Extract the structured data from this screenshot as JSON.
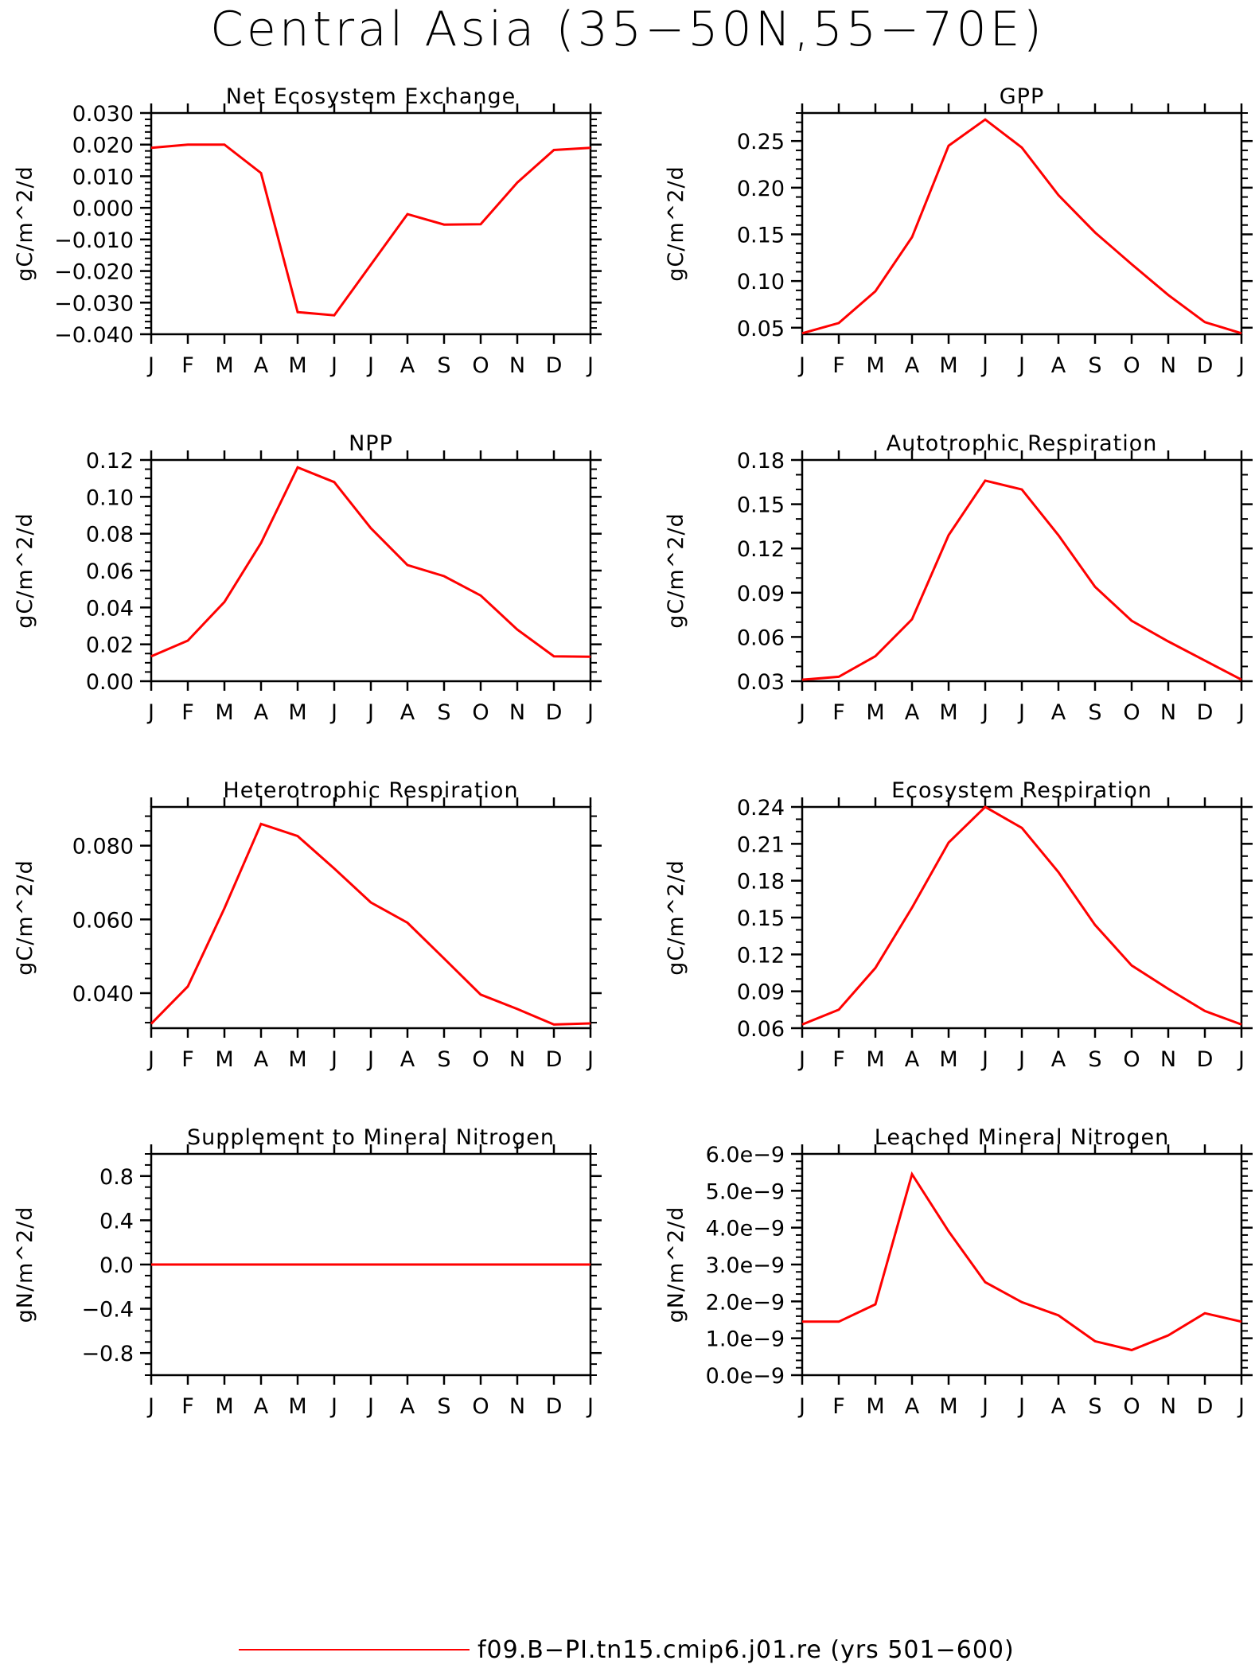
{
  "title": "Central Asia (35−50N,55−70E)",
  "months": [
    "J",
    "F",
    "M",
    "A",
    "M",
    "J",
    "J",
    "A",
    "S",
    "O",
    "N",
    "D",
    "J"
  ],
  "legend": {
    "label": "f09.B−PI.tn15.cmip6.j01.re (yrs 501−600)",
    "color": "#ff0000"
  },
  "colors": {
    "line": "#ff0000",
    "axis": "#000000"
  },
  "chart_data": [
    {
      "type": "line",
      "title": "Net Ecosystem Exchange",
      "ylabel": "gC/m^2/d",
      "ylim": [
        -0.04,
        0.03
      ],
      "yticks": [
        -0.04,
        -0.03,
        -0.02,
        -0.01,
        0.0,
        0.01,
        0.02,
        0.03
      ],
      "yticklabels": [
        "−0.040",
        "−0.030",
        "−0.020",
        "−0.010",
        "0.000",
        "0.010",
        "0.020",
        "0.030"
      ],
      "yminor": 4,
      "series": [
        {
          "values": [
            0.019,
            0.02,
            0.02,
            0.011,
            -0.033,
            -0.034,
            -0.018,
            -0.002,
            -0.0053,
            -0.0052,
            0.008,
            0.0183,
            0.019
          ]
        }
      ]
    },
    {
      "type": "line",
      "title": "GPP",
      "ylabel": "gC/m^2/d",
      "ylim": [
        0.043,
        0.28
      ],
      "yticks": [
        0.05,
        0.1,
        0.15,
        0.2,
        0.25
      ],
      "yticklabels": [
        "0.05",
        "0.10",
        "0.15",
        "0.20",
        "0.25"
      ],
      "yminor": 4,
      "series": [
        {
          "values": [
            0.044,
            0.055,
            0.089,
            0.147,
            0.245,
            0.273,
            0.243,
            0.192,
            0.152,
            0.118,
            0.085,
            0.056,
            0.044
          ]
        }
      ]
    },
    {
      "type": "line",
      "title": "NPP",
      "ylabel": "gC/m^2/d",
      "ylim": [
        0.0,
        0.12
      ],
      "yticks": [
        0.0,
        0.02,
        0.04,
        0.06,
        0.08,
        0.1,
        0.12
      ],
      "yticklabels": [
        "0.00",
        "0.02",
        "0.04",
        "0.06",
        "0.08",
        "0.10",
        "0.12"
      ],
      "yminor": 3,
      "series": [
        {
          "values": [
            0.0135,
            0.022,
            0.043,
            0.075,
            0.116,
            0.108,
            0.083,
            0.063,
            0.057,
            0.0465,
            0.028,
            0.0135,
            0.0133
          ]
        }
      ]
    },
    {
      "type": "line",
      "title": "Autotrophic Respiration",
      "ylabel": "gC/m^2/d",
      "ylim": [
        0.03,
        0.18
      ],
      "yticks": [
        0.03,
        0.06,
        0.09,
        0.12,
        0.15,
        0.18
      ],
      "yticklabels": [
        "0.03",
        "0.06",
        "0.09",
        "0.12",
        "0.15",
        "0.18"
      ],
      "yminor": 2,
      "series": [
        {
          "values": [
            0.031,
            0.033,
            0.047,
            0.072,
            0.129,
            0.166,
            0.16,
            0.129,
            0.094,
            0.071,
            0.057,
            0.044,
            0.031
          ]
        }
      ]
    },
    {
      "type": "line",
      "title": "Heterotrophic Respiration",
      "ylabel": "gC/m^2/d",
      "ylim": [
        0.0305,
        0.0905
      ],
      "yticks": [
        0.04,
        0.06,
        0.08
      ],
      "yticklabels": [
        "0.040",
        "0.060",
        "0.080"
      ],
      "yminor": 4,
      "series": [
        {
          "values": [
            0.0317,
            0.0418,
            0.063,
            0.0859,
            0.0826,
            0.0738,
            0.0646,
            0.0591,
            0.0494,
            0.0396,
            0.0357,
            0.0315,
            0.0318
          ]
        }
      ]
    },
    {
      "type": "line",
      "title": "Ecosystem Respiration",
      "ylabel": "gC/m^2/d",
      "ylim": [
        0.06,
        0.24
      ],
      "yticks": [
        0.06,
        0.09,
        0.12,
        0.15,
        0.18,
        0.21,
        0.24
      ],
      "yticklabels": [
        "0.06",
        "0.09",
        "0.12",
        "0.15",
        "0.18",
        "0.21",
        "0.24"
      ],
      "yminor": 2,
      "series": [
        {
          "values": [
            0.063,
            0.075,
            0.109,
            0.158,
            0.211,
            0.24,
            0.223,
            0.187,
            0.144,
            0.111,
            0.092,
            0.074,
            0.063
          ]
        }
      ]
    },
    {
      "type": "line",
      "title": "Supplement to Mineral Nitrogen",
      "ylabel": "gN/m^2/d",
      "ylim": [
        -1.0,
        1.0
      ],
      "yticks": [
        -0.8,
        -0.4,
        0.0,
        0.4,
        0.8
      ],
      "yticklabels": [
        "−0.8",
        "−0.4",
        "0.0",
        "0.4",
        "0.8"
      ],
      "yminor": 3,
      "series": [
        {
          "values": [
            0,
            0,
            0,
            0,
            0,
            0,
            0,
            0,
            0,
            0,
            0,
            0,
            0
          ]
        }
      ]
    },
    {
      "type": "line",
      "title": "Leached Mineral Nitrogen",
      "ylabel": "gN/m^2/d",
      "ylim": [
        0.0,
        6.0
      ],
      "yticks": [
        0,
        1,
        2,
        3,
        4,
        5,
        6
      ],
      "yticklabels": [
        "0.0e−9",
        "1.0e−9",
        "2.0e−9",
        "3.0e−9",
        "4.0e−9",
        "5.0e−9",
        "6.0e−9"
      ],
      "yunit": "e-9",
      "yminor": 4,
      "series": [
        {
          "values": [
            1.45,
            1.45,
            1.92,
            5.45,
            3.9,
            2.52,
            1.98,
            1.62,
            0.92,
            0.68,
            1.08,
            1.68,
            1.45
          ]
        }
      ]
    }
  ]
}
